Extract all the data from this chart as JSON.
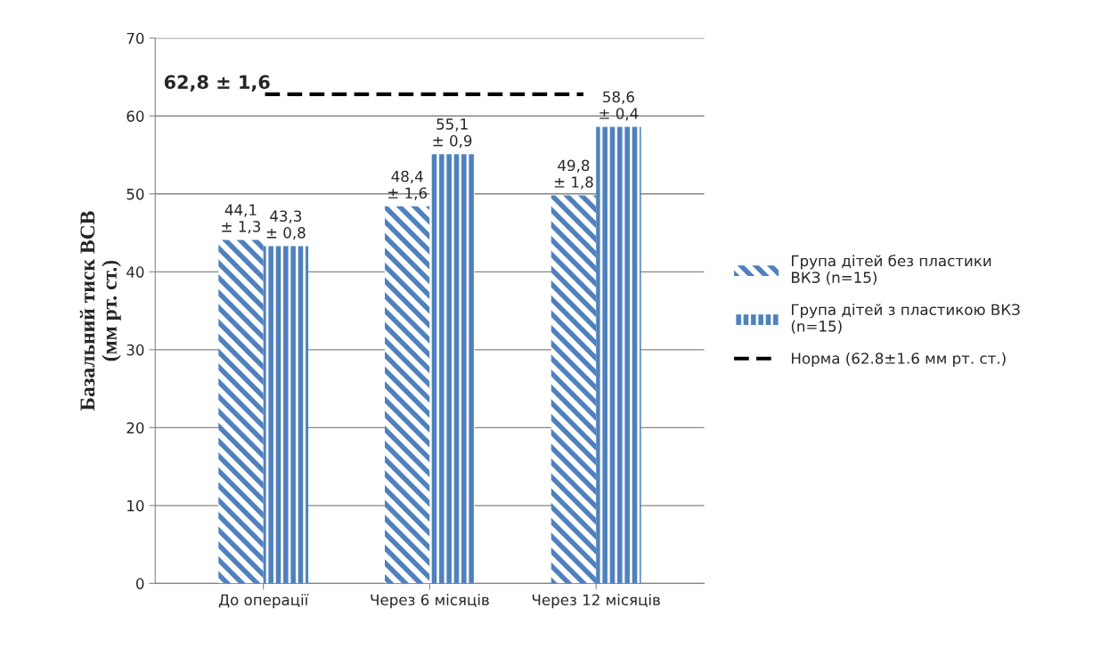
{
  "chart_data": {
    "type": "bar",
    "ylabel": "Базальний тиск ВСВ\n(мм рт. ст.)",
    "categories": [
      "До операції",
      "Через 6 місяців",
      "Через 12 місяців"
    ],
    "series": [
      {
        "name": "Група дітей без пластики\nВКЗ (n=15)",
        "color": "#4f81bd",
        "values": [
          44.1,
          48.4,
          49.8
        ],
        "value_labels": [
          "44,1\n± 1,3",
          "48,4\n± 1,6",
          "49,8\n± 1,8"
        ]
      },
      {
        "name": "Група дітей з пластикою ВКЗ\n(n=15)",
        "color": "#4f81bd",
        "values": [
          43.3,
          55.1,
          58.6
        ],
        "value_labels": [
          "43,3\n± 0,8",
          "55,1\n± 0,9",
          "58,6\n± 0,4"
        ]
      }
    ],
    "ref_lines": [
      {
        "axis": "y",
        "value": 62.8,
        "label": "Норма (62.8±1.6 мм рт. ст.)",
        "color": "#000000",
        "line_style": "dashed"
      }
    ],
    "annotations": [
      "62,8 ± 1,6"
    ],
    "ylim": [
      0,
      70
    ],
    "yticks": [
      0,
      10,
      20,
      30,
      40,
      50,
      60,
      70
    ],
    "grid": "y",
    "legend": "right"
  }
}
